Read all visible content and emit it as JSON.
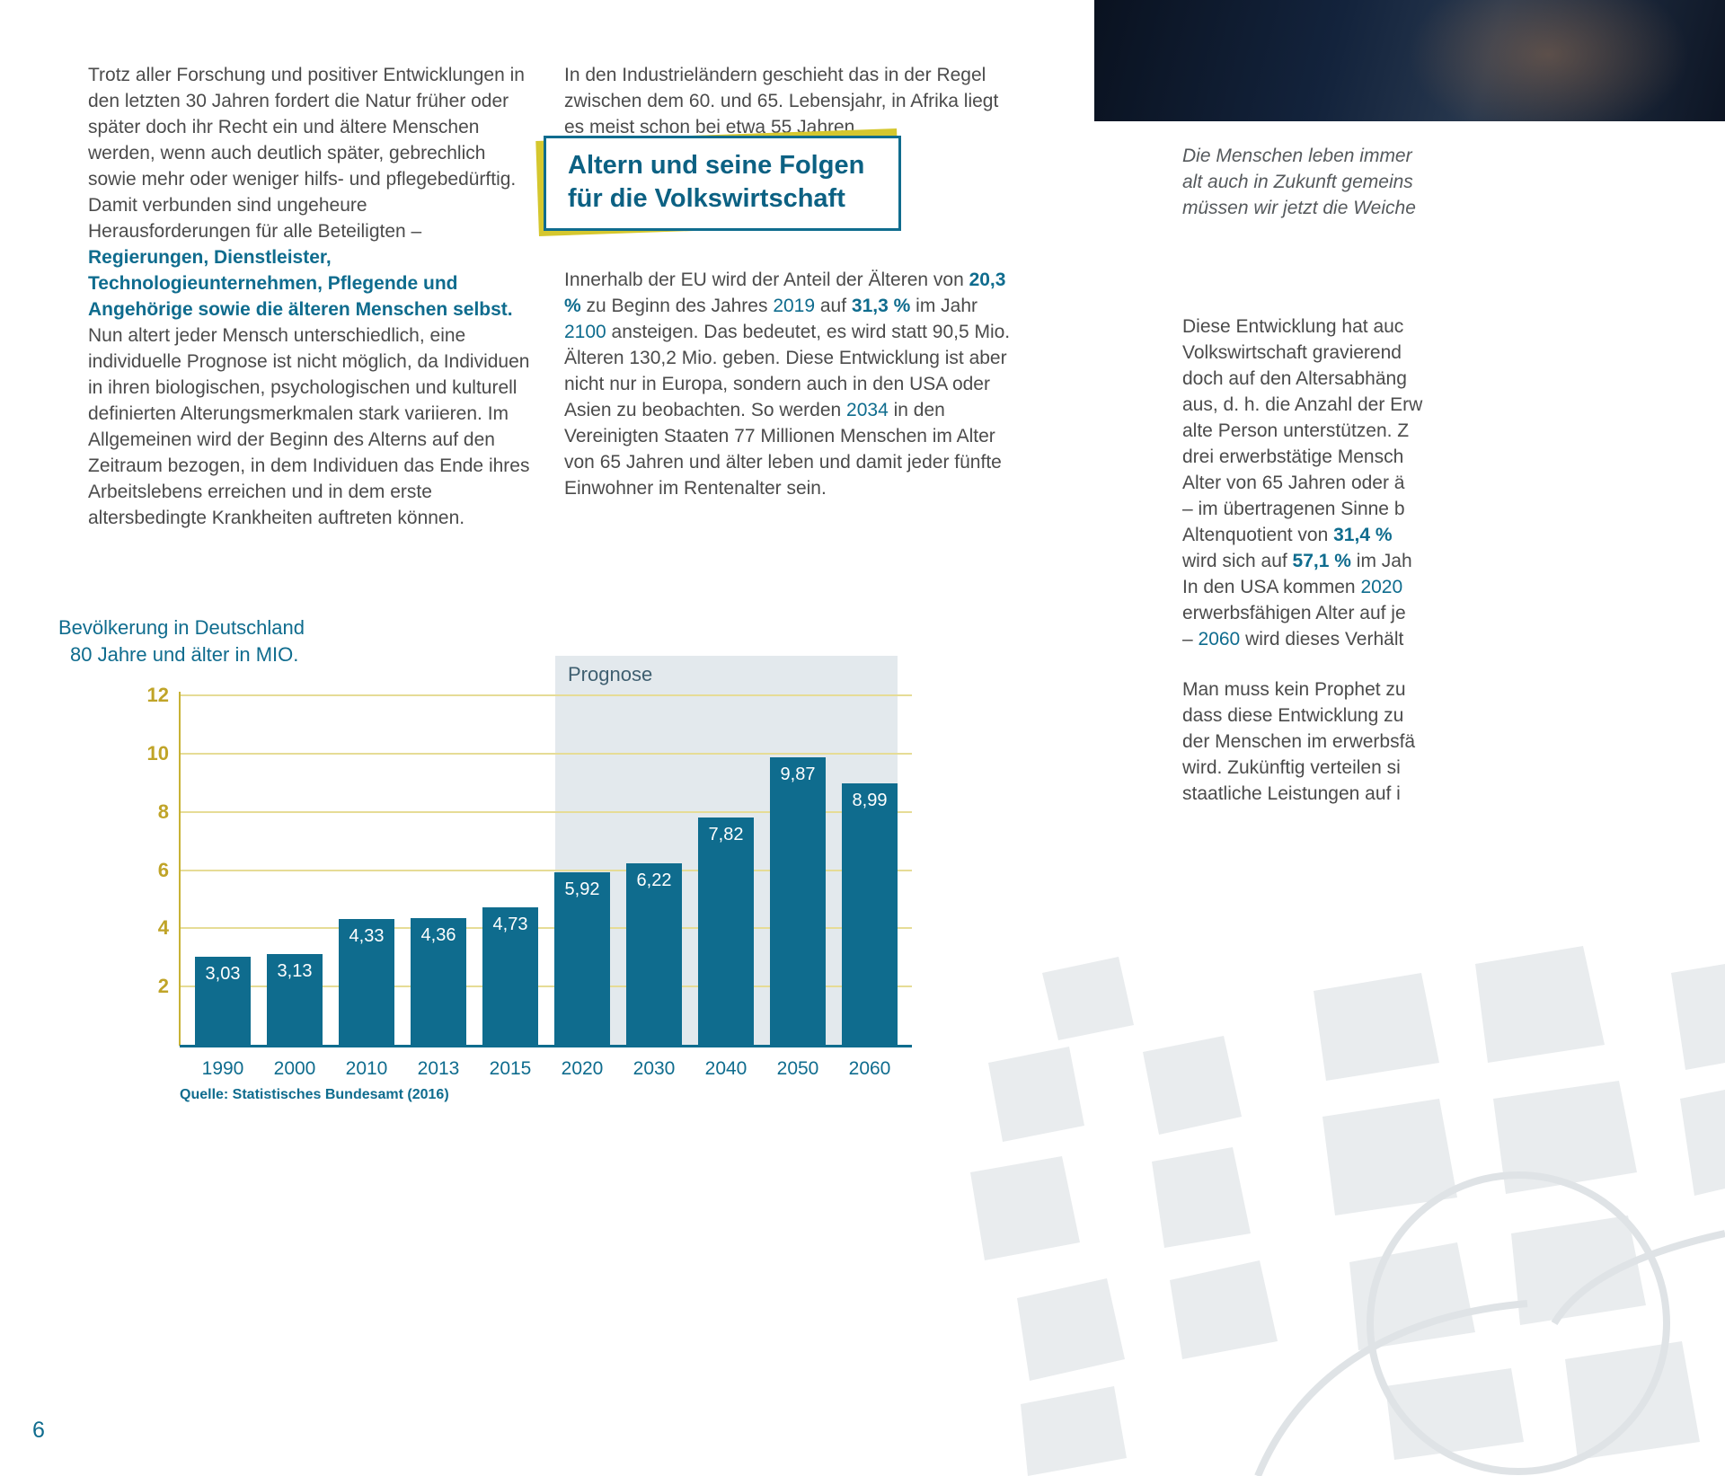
{
  "page_number": "6",
  "colors": {
    "teal": "#0f6c8e",
    "heading_teal": "#0c6183",
    "gold_axis": "#c0a428",
    "gold_grid": "#e6dc96",
    "accent_yellow": "#d5c72e",
    "prognose_bg": "#e3e9ed",
    "body_text": "#4b4b4b"
  },
  "left_column": {
    "segments": [
      {
        "t": "Trotz aller Forschung und positiver Entwicklungen in den letzten 30 Jahren fordert die Natur früher oder später doch ihr Recht ein und ältere Menschen werden, wenn auch deutlich später, gebrechlich sowie mehr oder weniger hilfs- und pflegebedürftig. Damit verbunden sind ungeheure Herausforderungen für alle Beteiligten – ",
        "c": "n"
      },
      {
        "t": "Regierungen, Dienstleister, Technologieunternehmen, Pflegende und Angehörige sowie die älteren Menschen selbst.",
        "c": "bt"
      },
      {
        "t": " Nun altert jeder Mensch unterschiedlich, eine individuelle Prognose ist nicht möglich, da Individuen in ihren biologischen, psychologischen und kulturell definierten Alterungsmerkmalen stark variieren. Im Allgemeinen wird der Beginn des Alterns auf den Zeitraum bezogen, in dem Individuen das Ende ihres Arbeitslebens erreichen und in dem erste altersbedingte Krankheiten auftreten können.",
        "c": "n"
      }
    ]
  },
  "middle_column": {
    "intro": "In den Industrieländern geschieht das in der Regel zwischen dem 60. und 65. Lebensjahr, in Afrika liegt es meist schon bei etwa 55 Jahren.",
    "heading": {
      "line1": "Altern und seine Folgen",
      "line2": "für die Volkswirtschaft"
    },
    "segments": [
      {
        "t": "Innerhalb der EU wird der Anteil der Älteren von ",
        "c": "n"
      },
      {
        "t": "20,3 %",
        "c": "bt"
      },
      {
        "t": " zu Beginn des Jahres ",
        "c": "n"
      },
      {
        "t": "2019",
        "c": "t"
      },
      {
        "t": " auf ",
        "c": "n"
      },
      {
        "t": "31,3 %",
        "c": "bt"
      },
      {
        "t": " im Jahr ",
        "c": "n"
      },
      {
        "t": "2100",
        "c": "t"
      },
      {
        "t": " ansteigen. Das bedeutet, es wird statt 90,5 Mio. Älteren 130,2 Mio. geben. Diese Entwicklung ist aber nicht nur in Europa, sondern auch in den USA oder Asien zu beobachten. So werden ",
        "c": "n"
      },
      {
        "t": "2034",
        "c": "t"
      },
      {
        "t": " in den Vereinigten Staaten 77 Millionen Menschen im Alter von 65 Jahren und älter leben und damit jeder fünfte Einwohner im Rentenalter sein.",
        "c": "n"
      }
    ]
  },
  "right_column": {
    "quote_lines": [
      [
        {
          "t": "Die Menschen leben immer",
          "c": "n"
        }
      ],
      [
        {
          "t": "alt auch in Zukunft gemeins",
          "c": "n"
        }
      ],
      [
        {
          "t": "müssen wir jetzt die Weiche",
          "c": "n"
        }
      ]
    ],
    "block1_lines": [
      [
        {
          "t": "Diese Entwicklung hat auc",
          "c": "n"
        }
      ],
      [
        {
          "t": "Volkswirtschaft gravierend",
          "c": "n"
        }
      ],
      [
        {
          "t": "doch auf den Altersabhäng",
          "c": "n"
        }
      ],
      [
        {
          "t": "aus, d. h. die Anzahl der Erw",
          "c": "n"
        }
      ],
      [
        {
          "t": "alte Person unterstützen. Z",
          "c": "n"
        }
      ],
      [
        {
          "t": "drei erwerbstätige Mensch",
          "c": "n"
        }
      ],
      [
        {
          "t": "Alter von 65 Jahren oder ä",
          "c": "n"
        }
      ],
      [
        {
          "t": "– im übertragenen Sinne b",
          "c": "n"
        }
      ],
      [
        {
          "t": "Altenquotient von ",
          "c": "n"
        },
        {
          "t": "31,4 %",
          "c": "bt"
        }
      ],
      [
        {
          "t": "wird sich auf ",
          "c": "n"
        },
        {
          "t": "57,1 %",
          "c": "bt"
        },
        {
          "t": " im Jah",
          "c": "n"
        }
      ],
      [
        {
          "t": "In den USA kommen ",
          "c": "n"
        },
        {
          "t": "2020",
          "c": "t"
        }
      ],
      [
        {
          "t": "erwerbsfähigen Alter auf je",
          "c": "n"
        }
      ],
      [
        {
          "t": "– ",
          "c": "n"
        },
        {
          "t": "2060",
          "c": "t"
        },
        {
          "t": " wird dieses Verhält",
          "c": "n"
        }
      ]
    ],
    "block2_lines": [
      [
        {
          "t": "Man muss kein Prophet zu",
          "c": "n"
        }
      ],
      [
        {
          "t": "dass diese Entwicklung zu",
          "c": "n"
        }
      ],
      [
        {
          "t": "der Menschen im erwerbsfä",
          "c": "n"
        }
      ],
      [
        {
          "t": "wird. Zukünftig verteilen si",
          "c": "n"
        }
      ],
      [
        {
          "t": "staatliche Leistungen auf i",
          "c": "n"
        }
      ]
    ]
  },
  "chart_data": {
    "type": "bar",
    "title": "Bevölkerung in Deutschland",
    "subtitle": "80 Jahre und älter in MIO.",
    "categories": [
      "1990",
      "2000",
      "2010",
      "2013",
      "2015",
      "2020",
      "2030",
      "2040",
      "2050",
      "2060"
    ],
    "values": [
      3.03,
      3.13,
      4.33,
      4.36,
      4.73,
      5.92,
      6.22,
      7.82,
      9.87,
      8.99
    ],
    "value_labels": [
      "3,03",
      "3,13",
      "4,33",
      "4,36",
      "4,73",
      "5,92",
      "6,22",
      "7,82",
      "9,87",
      "8,99"
    ],
    "y_ticks": [
      2,
      4,
      6,
      8,
      10,
      12
    ],
    "ylim": [
      0,
      12.8
    ],
    "grid": true,
    "prognose_label": "Prognose",
    "prognose_from_index": 5,
    "source": "Quelle: Statistisches Bundesamt (2016)",
    "bar_color": "#0f6c8e",
    "xlabel": "",
    "ylabel": ""
  }
}
